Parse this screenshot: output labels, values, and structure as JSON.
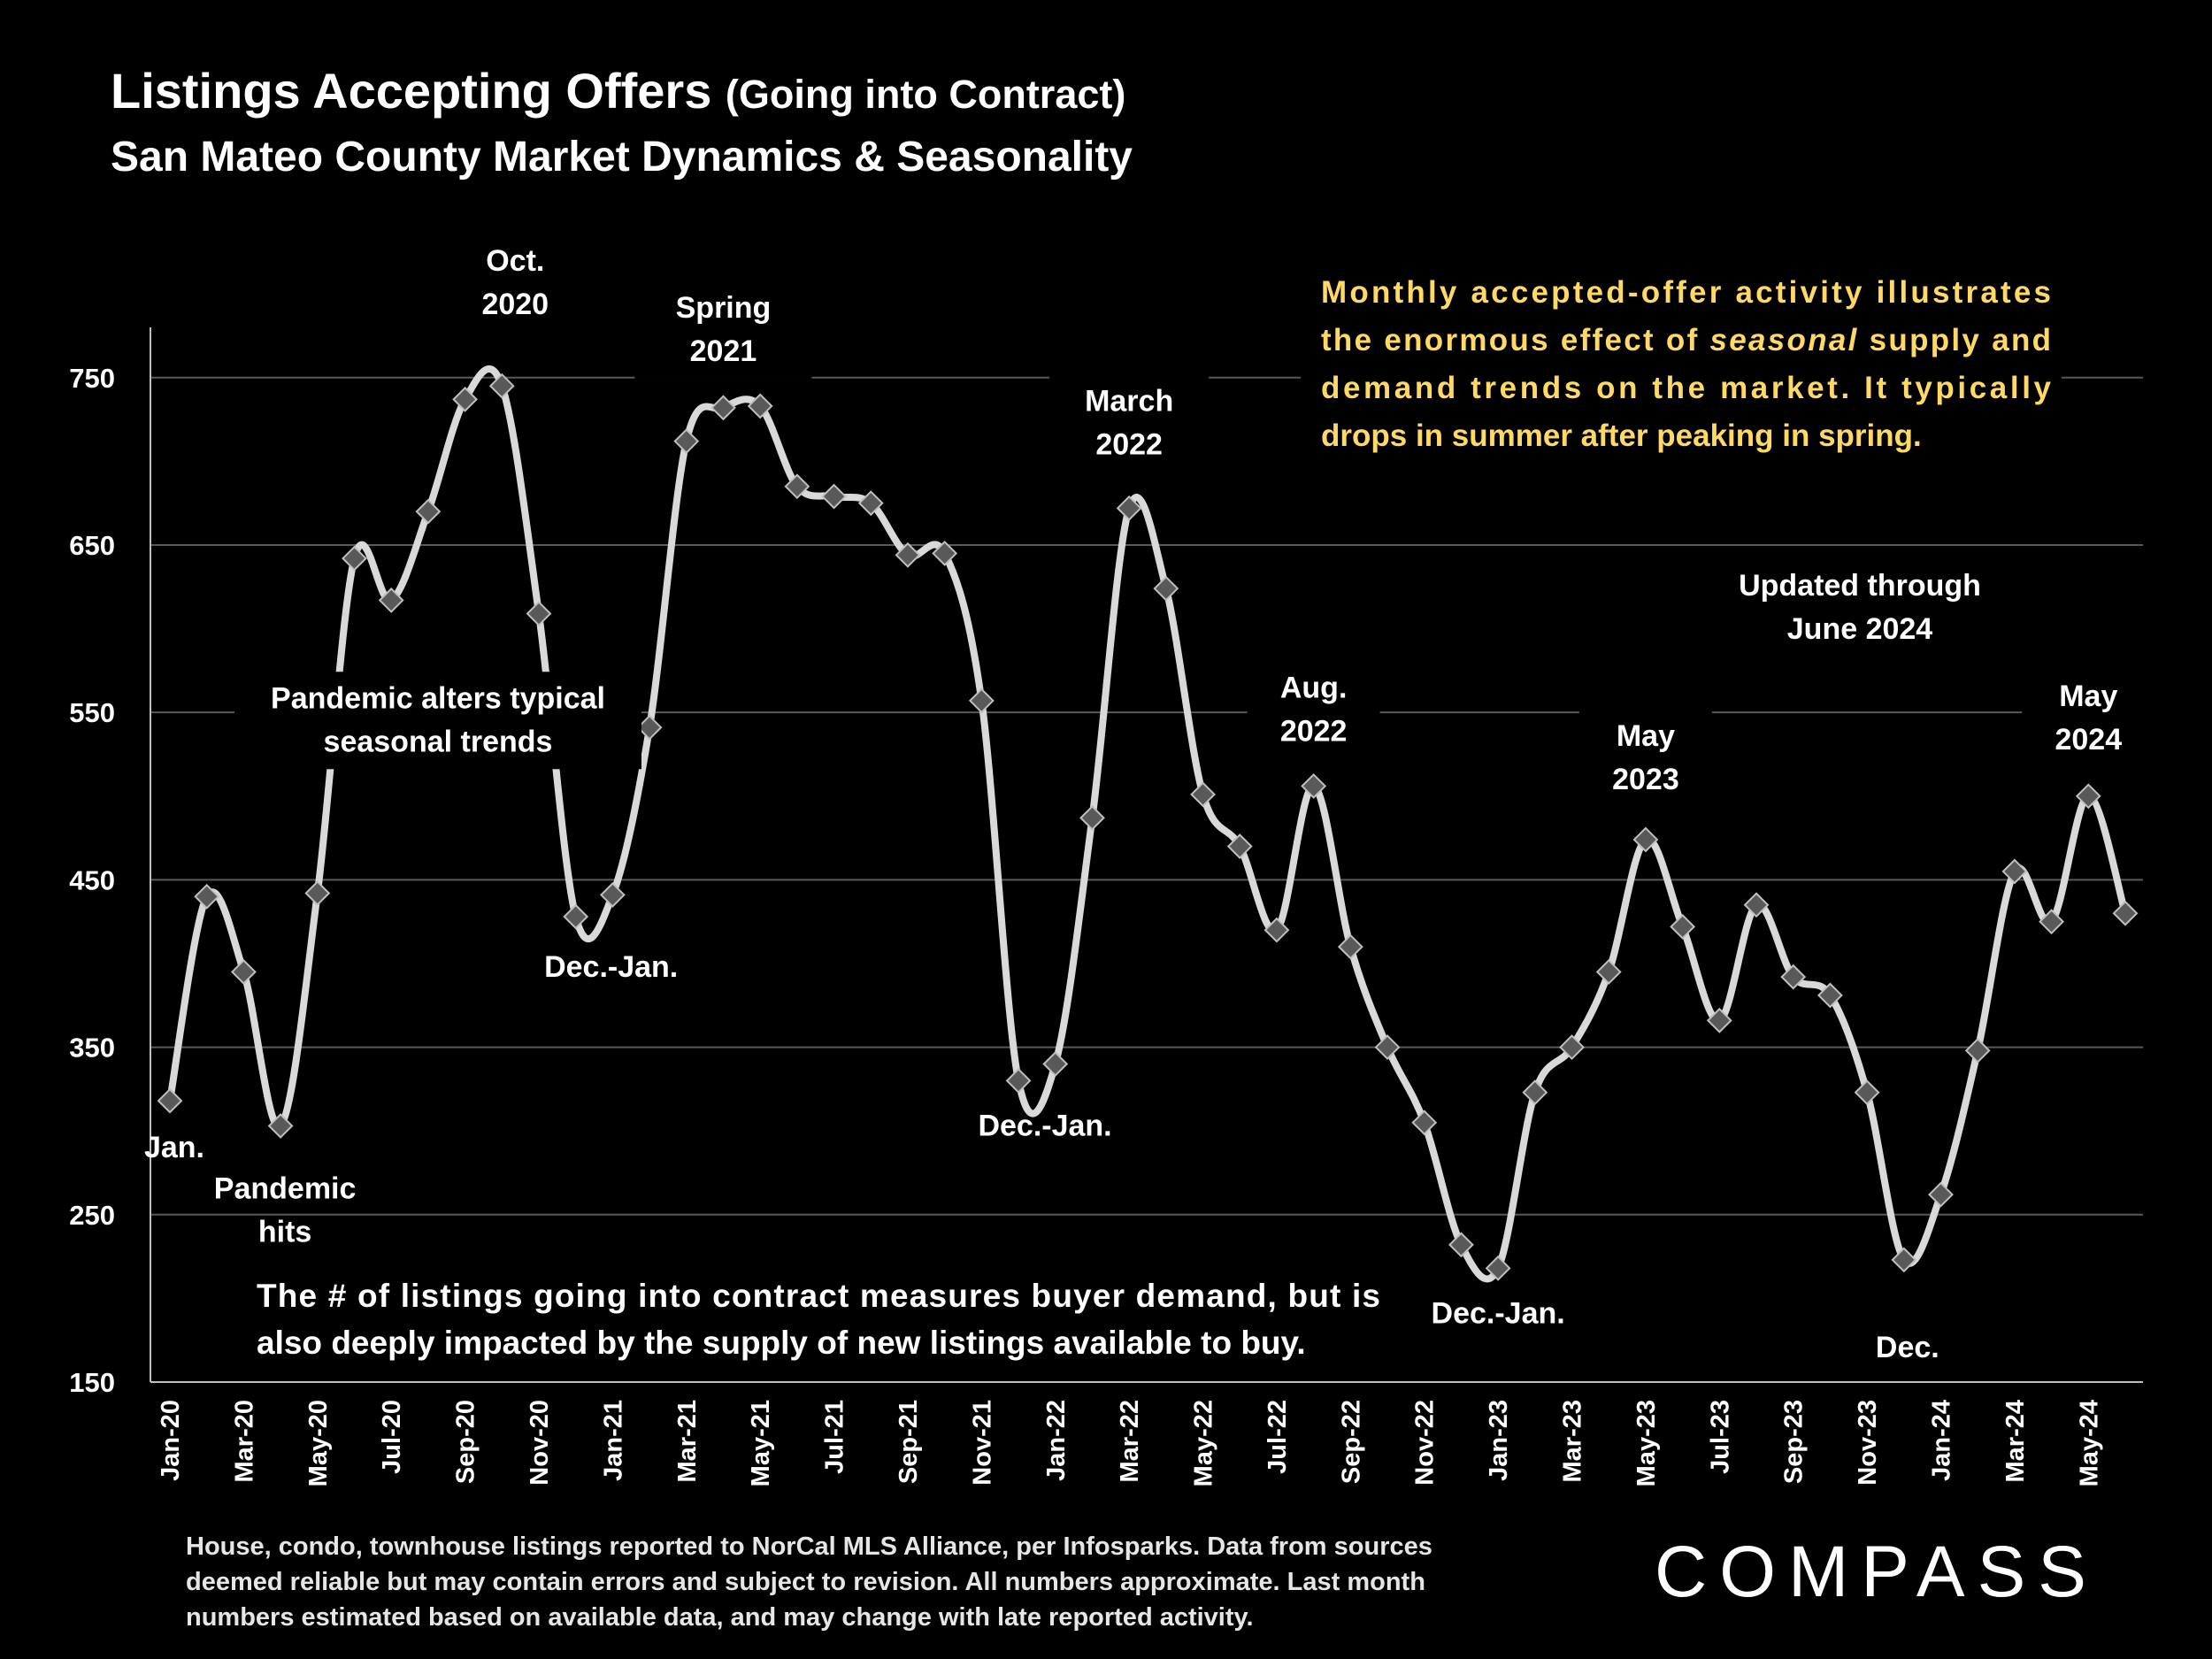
{
  "header": {
    "title": "Listings Accepting Offers",
    "title_suffix": "(Going into Contract)",
    "subtitle": "San Mateo County Market Dynamics & Seasonality"
  },
  "chart_data": {
    "type": "line",
    "ylim": [
      150,
      780
    ],
    "yticks": [
      150,
      250,
      350,
      450,
      550,
      650,
      750
    ],
    "grid": true,
    "line_color": "#d9d9d9",
    "marker_color": "#595959",
    "x": [
      "Jan-20",
      "Feb-20",
      "Mar-20",
      "Apr-20",
      "May-20",
      "Jun-20",
      "Jul-20",
      "Aug-20",
      "Sep-20",
      "Oct-20",
      "Nov-20",
      "Dec-20",
      "Jan-21",
      "Feb-21",
      "Mar-21",
      "Apr-21",
      "May-21",
      "Jun-21",
      "Jul-21",
      "Aug-21",
      "Sep-21",
      "Oct-21",
      "Nov-21",
      "Dec-21",
      "Jan-22",
      "Feb-22",
      "Mar-22",
      "Apr-22",
      "May-22",
      "Jun-22",
      "Jul-22",
      "Aug-22",
      "Sep-22",
      "Oct-22",
      "Nov-22",
      "Dec-22",
      "Jan-23",
      "Feb-23",
      "Mar-23",
      "Apr-23",
      "May-23",
      "Jun-23",
      "Jul-23",
      "Aug-23",
      "Sep-23",
      "Oct-23",
      "Nov-23",
      "Dec-23",
      "Jan-24",
      "Feb-24",
      "Mar-24",
      "Apr-24",
      "May-24",
      "Jun-24"
    ],
    "xtick_labels": [
      "Jan-20",
      "Mar-20",
      "May-20",
      "Jul-20",
      "Sep-20",
      "Nov-20",
      "Jan-21",
      "Mar-21",
      "May-21",
      "Jul-21",
      "Sep-21",
      "Nov-21",
      "Jan-22",
      "Mar-22",
      "May-22",
      "Jul-22",
      "Sep-22",
      "Nov-22",
      "Jan-23",
      "Mar-23",
      "May-23",
      "Jul-23",
      "Sep-23",
      "Nov-23",
      "Jan-24",
      "Mar-24",
      "May-24"
    ],
    "values": [
      318,
      440,
      395,
      303,
      442,
      642,
      617,
      670,
      737,
      745,
      609,
      428,
      441,
      541,
      712,
      732,
      733,
      685,
      679,
      675,
      644,
      645,
      557,
      330,
      340,
      487,
      672,
      624,
      501,
      470,
      420,
      506,
      410,
      350,
      305,
      232,
      218,
      323,
      350,
      395,
      474,
      422,
      366,
      435,
      392,
      381,
      323,
      223,
      262,
      348,
      455,
      425,
      500,
      430
    ],
    "annotations": [
      {
        "text": "Jan.",
        "x": "Jan-20",
        "y": 318,
        "pos": "below"
      },
      {
        "text": "Pandemic hits",
        "x": "Apr-20",
        "y": 303,
        "pos": "below"
      },
      {
        "text": "Oct. 2020",
        "x": "Oct-20",
        "y": 745,
        "pos": "above"
      },
      {
        "text": "Pandemic alters typical seasonal trends",
        "x": "Jul-20",
        "y": 560,
        "pos": "box"
      },
      {
        "text": "Dec.-Jan.",
        "x": "Dec-20",
        "y": 428,
        "pos": "below"
      },
      {
        "text": "Spring 2021",
        "x": "Apr-21",
        "y": 733,
        "pos": "above"
      },
      {
        "text": "Dec.-Jan.",
        "x": "Dec-21",
        "y": 330,
        "pos": "below"
      },
      {
        "text": "March 2022",
        "x": "Mar-22",
        "y": 672,
        "pos": "above"
      },
      {
        "text": "Aug. 2022",
        "x": "Aug-22",
        "y": 506,
        "pos": "above"
      },
      {
        "text": "Dec.-Jan.",
        "x": "Jan-23",
        "y": 218,
        "pos": "below"
      },
      {
        "text": "May 2023",
        "x": "May-23",
        "y": 474,
        "pos": "above"
      },
      {
        "text": "Dec.",
        "x": "Dec-23",
        "y": 223,
        "pos": "below"
      },
      {
        "text": "May 2024",
        "x": "May-24",
        "y": 500,
        "pos": "above"
      }
    ],
    "notes": {
      "info_box": "Monthly accepted-offer activity illustrates the enormous effect of seasonal supply and demand trends on the market. It typically drops in summer after peaking in spring.",
      "info_box_emphasis": "seasonal",
      "info_color": "#ffd966",
      "updated": "Updated through June 2024",
      "bottom_note": "The # of listings going into contract measures buyer demand, but is also deeply impacted by the supply of new listings available to buy."
    }
  },
  "footer": {
    "footnote": "House, condo, townhouse listings reported to NorCal MLS Alliance, per Infosparks. Data from sources deemed reliable but may contain errors and subject to revision. All numbers approximate. Last month numbers estimated based on available data, and may change with late reported activity.",
    "logo": "COMPASS"
  }
}
